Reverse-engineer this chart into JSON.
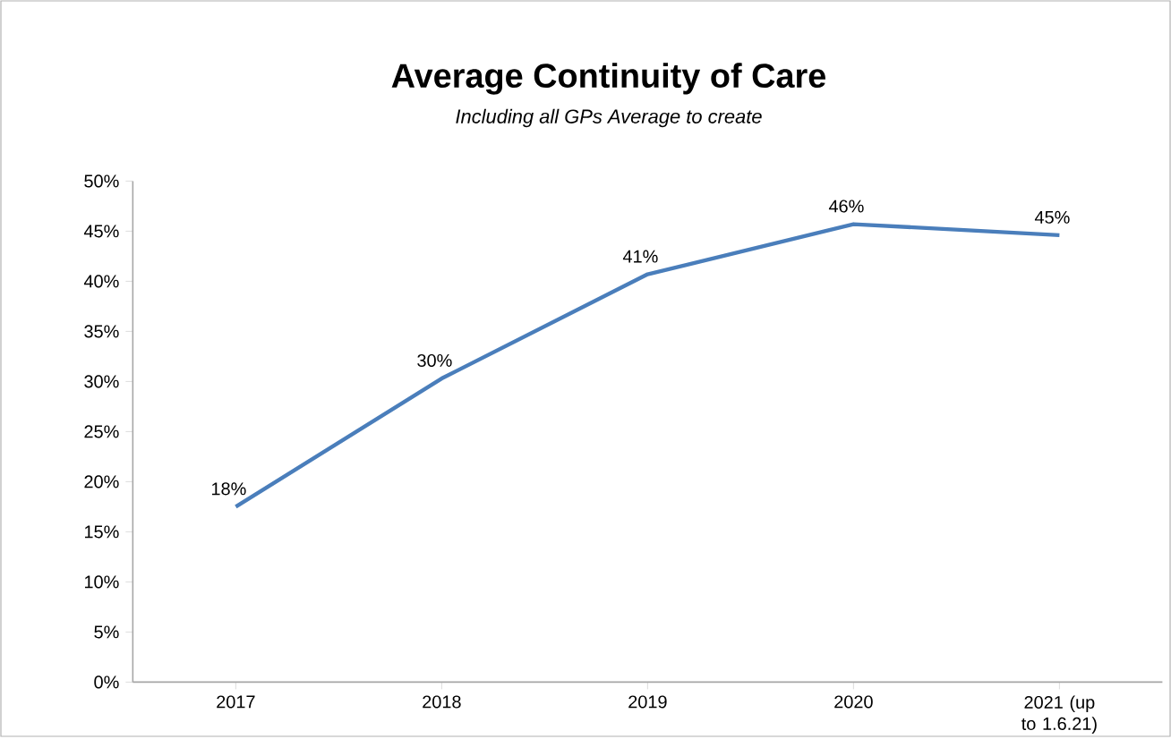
{
  "chart_data": {
    "type": "line",
    "title": "Average Continuity of Care",
    "subtitle": "Including all GPs Average to create",
    "categories": [
      "2017",
      "2018",
      "2019",
      "2020",
      "2021 (up to 1.6.21)"
    ],
    "series": [
      {
        "color": "#4a7ebb",
        "values": [
          17.5,
          30.3,
          40.7,
          45.7,
          44.6
        ],
        "value_labels": [
          "18%",
          "30%",
          "41%",
          "46%",
          "45%"
        ]
      }
    ],
    "ylim": [
      0,
      50
    ],
    "yticks": [
      {
        "value": 0,
        "label": "0%"
      },
      {
        "value": 5,
        "label": "5%"
      },
      {
        "value": 10,
        "label": "10%"
      },
      {
        "value": 15,
        "label": "15%"
      },
      {
        "value": 20,
        "label": "20%"
      },
      {
        "value": 25,
        "label": "25%"
      },
      {
        "value": 30,
        "label": "30%"
      },
      {
        "value": 35,
        "label": "35%"
      },
      {
        "value": 40,
        "label": "40%"
      },
      {
        "value": 45,
        "label": "45%"
      },
      {
        "value": 50,
        "label": "50%"
      }
    ]
  }
}
